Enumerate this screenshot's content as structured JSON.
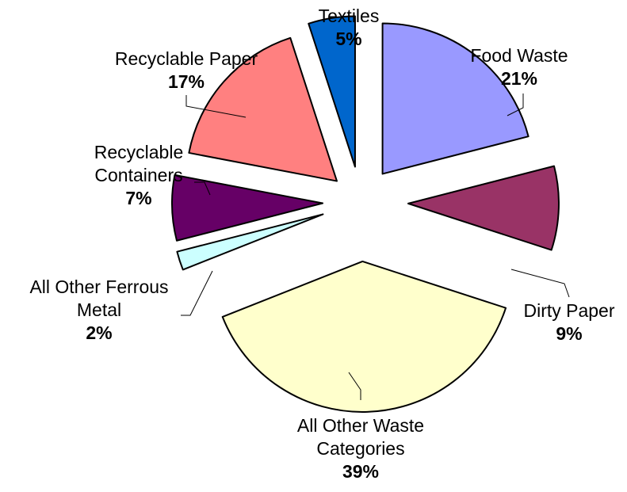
{
  "chart_data": {
    "type": "pie",
    "title": "",
    "exploded": true,
    "start": "top, clockwise",
    "slices": [
      {
        "name": "Food Waste",
        "label_lines": [
          "Food Waste"
        ],
        "value": 21,
        "pct_label": "21%",
        "color": "#9999ff"
      },
      {
        "name": "Dirty Paper",
        "label_lines": [
          "Dirty Paper"
        ],
        "value": 9,
        "pct_label": "9%",
        "color": "#993366"
      },
      {
        "name": "All Other Waste Categories",
        "label_lines": [
          "All Other Waste",
          "Categories"
        ],
        "value": 39,
        "pct_label": "39%",
        "color": "#ffffcc"
      },
      {
        "name": "All Other Ferrous Metal",
        "label_lines": [
          "All Other Ferrous",
          "Metal"
        ],
        "value": 2,
        "pct_label": "2%",
        "color": "#ccffff"
      },
      {
        "name": "Recyclable Containers",
        "label_lines": [
          "Recyclable",
          "Containers"
        ],
        "value": 7,
        "pct_label": "7%",
        "color": "#660066"
      },
      {
        "name": "Recyclable Paper",
        "label_lines": [
          "Recyclable Paper"
        ],
        "value": 17,
        "pct_label": "17%",
        "color": "#ff8080"
      },
      {
        "name": "Textiles",
        "label_lines": [
          "Textiles"
        ],
        "value": 5,
        "pct_label": "5%",
        "color": "#0066cc"
      }
    ]
  }
}
